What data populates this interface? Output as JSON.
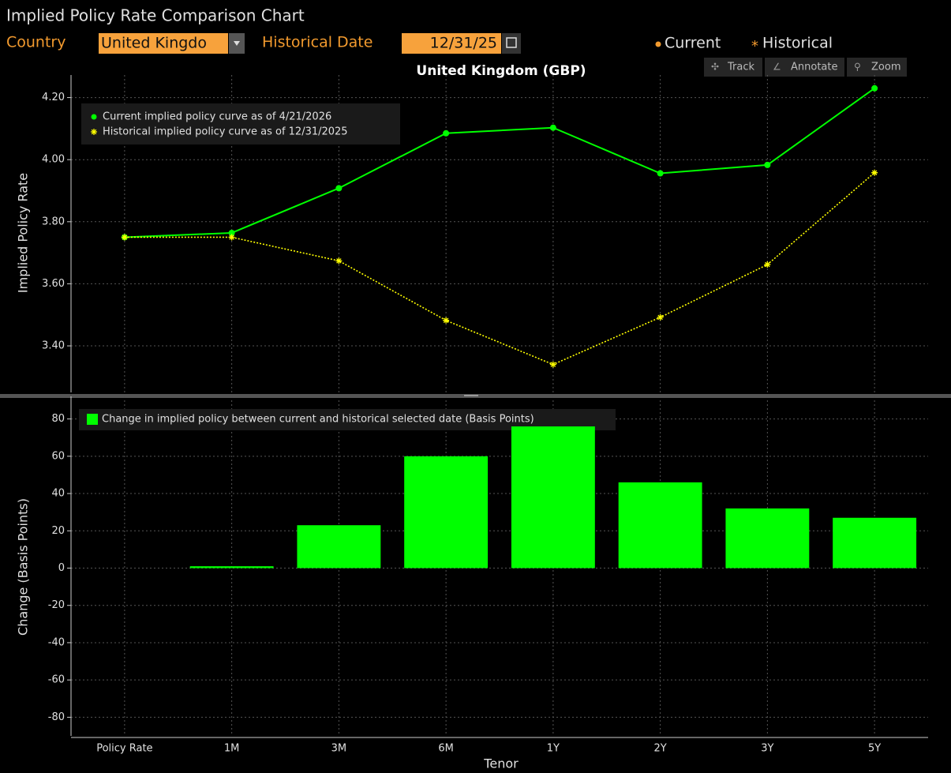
{
  "header": {
    "title": "Implied Policy Rate Comparison Chart",
    "country_label": "Country",
    "country_value": "United Kingdo",
    "date_label": "Historical Date",
    "date_value": "12/31/25",
    "legend": [
      "Current",
      "Historical"
    ],
    "tools": [
      "Track",
      "Annotate",
      "Zoom"
    ]
  },
  "chart_data": [
    {
      "type": "line",
      "title": "United Kingdom (GBP)",
      "y_label": "Implied Policy Rate",
      "series": [
        {
          "name": "Current implied policy curve as of 4/21/2026",
          "color": "#00ff00",
          "line_style": "solid",
          "marker": "circle",
          "values": [
            3.75,
            3.764,
            3.908,
            4.085,
            4.103,
            3.956,
            3.983,
            4.23
          ]
        },
        {
          "name": "Historical implied policy curve as of 12/31/2025",
          "color": "#ffff00",
          "line_style": "dotted",
          "marker": "star",
          "values": [
            3.75,
            3.75,
            3.674,
            3.482,
            3.34,
            3.492,
            3.662,
            3.958
          ]
        }
      ],
      "ylim": [
        3.25,
        4.26
      ],
      "yticks": [
        {
          "value": 3.4,
          "label": "3.40"
        },
        {
          "value": 3.6,
          "label": "3.60"
        },
        {
          "value": 3.8,
          "label": "3.80"
        },
        {
          "value": 4.0,
          "label": "4.00"
        },
        {
          "value": 4.2,
          "label": "4.20"
        }
      ],
      "grid": true
    },
    {
      "type": "bar",
      "x_label": "Tenor",
      "y_label": "Change (Basis Points)",
      "categories": [
        "Policy Rate",
        "1M",
        "3M",
        "6M",
        "1Y",
        "2Y",
        "3Y",
        "5Y"
      ],
      "series": [
        {
          "name": "Change in implied policy between current and historical selected date (Basis Points)",
          "color": "#00ff00",
          "values": [
            0,
            1,
            23,
            60,
            76,
            46,
            32,
            27
          ]
        }
      ],
      "ylim": [
        -90,
        90
      ],
      "yticks": [
        -80,
        -60,
        -40,
        -20,
        0,
        20,
        40,
        60,
        80
      ],
      "grid": true
    }
  ]
}
